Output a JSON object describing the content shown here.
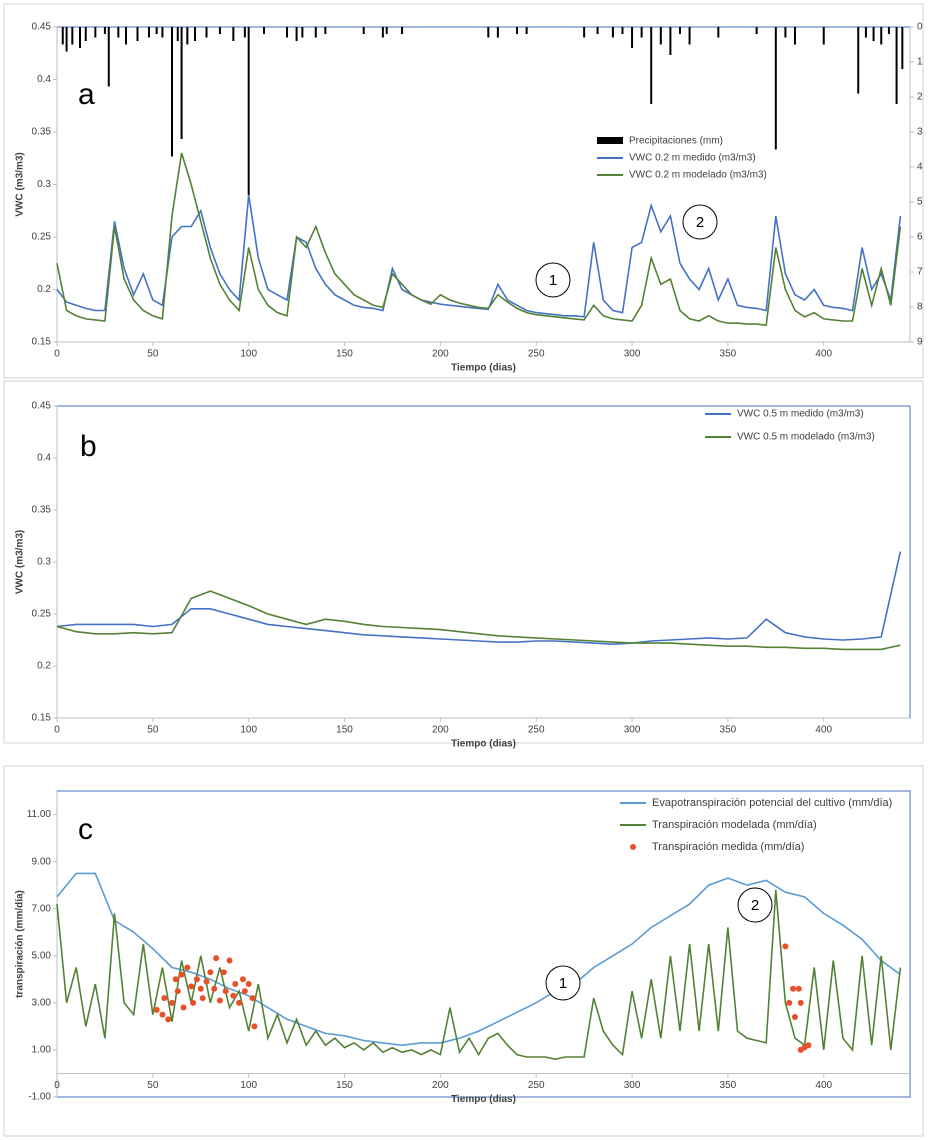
{
  "chart_data": [
    {
      "type": "line",
      "xlabel": "Tiempo (dias)",
      "ylabel": "VWC (m3/m3)",
      "annotations": [
        "a",
        "1",
        "2"
      ],
      "xlim": [
        0,
        445
      ],
      "xticks": [
        0,
        50,
        100,
        150,
        200,
        250,
        300,
        350,
        400
      ],
      "ylim": [
        0.15,
        0.45
      ],
      "yticks": [
        0.15,
        0.2,
        0.25,
        0.3,
        0.35,
        0.4,
        0.45
      ],
      "y2lim": [
        9,
        0
      ],
      "y2ticks": [
        0,
        1,
        2,
        3,
        4,
        5,
        6,
        7,
        8,
        9
      ],
      "x": [
        0,
        5,
        10,
        15,
        20,
        25,
        30,
        35,
        40,
        45,
        50,
        55,
        60,
        65,
        70,
        75,
        80,
        85,
        90,
        95,
        100,
        105,
        110,
        115,
        120,
        125,
        130,
        135,
        140,
        145,
        150,
        155,
        160,
        165,
        170,
        175,
        180,
        185,
        190,
        195,
        200,
        205,
        210,
        215,
        220,
        225,
        230,
        235,
        240,
        245,
        250,
        255,
        260,
        265,
        270,
        275,
        280,
        285,
        290,
        295,
        300,
        305,
        310,
        315,
        320,
        325,
        330,
        335,
        340,
        345,
        350,
        355,
        360,
        365,
        370,
        375,
        380,
        385,
        390,
        395,
        400,
        405,
        410,
        415,
        420,
        425,
        430,
        435,
        440
      ],
      "series": [
        {
          "name": "Precipitaciones (mm)",
          "type": "bar",
          "axis": "y2",
          "color": "#000000",
          "x": [
            3,
            5,
            8,
            12,
            15,
            20,
            25,
            27,
            32,
            36,
            42,
            48,
            52,
            55,
            60,
            63,
            65,
            68,
            72,
            78,
            85,
            92,
            98,
            100,
            108,
            120,
            125,
            128,
            135,
            140,
            160,
            170,
            172,
            180,
            225,
            230,
            240,
            245,
            275,
            282,
            290,
            295,
            300,
            305,
            310,
            315,
            320,
            325,
            330,
            345,
            365,
            375,
            380,
            385,
            400,
            418,
            422,
            426,
            430,
            434,
            438,
            441
          ],
          "values": [
            0.5,
            0.7,
            0.5,
            0.6,
            0.4,
            0.3,
            0.2,
            1.7,
            0.3,
            0.5,
            0.4,
            0.3,
            0.2,
            0.3,
            3.7,
            0.4,
            3.2,
            0.5,
            0.4,
            0.3,
            0.2,
            0.4,
            0.3,
            4.8,
            0.2,
            0.3,
            0.4,
            0.3,
            0.3,
            0.2,
            0.2,
            0.3,
            0.2,
            0.2,
            0.3,
            0.3,
            0.2,
            0.2,
            0.3,
            0.2,
            0.3,
            0.2,
            0.6,
            0.3,
            2.2,
            0.5,
            0.8,
            0.2,
            0.5,
            0.3,
            0.2,
            3.5,
            0.3,
            0.5,
            0.5,
            1.9,
            0.3,
            0.4,
            0.5,
            0.2,
            2.2,
            1.2
          ]
        },
        {
          "name": "VWC 0.2 m medido (m3/m3)",
          "type": "line",
          "color": "#4472c4",
          "values": [
            0.2,
            0.188,
            0.185,
            0.182,
            0.18,
            0.18,
            0.265,
            0.22,
            0.195,
            0.215,
            0.19,
            0.185,
            0.25,
            0.26,
            0.26,
            0.275,
            0.24,
            0.215,
            0.2,
            0.19,
            0.29,
            0.23,
            0.2,
            0.195,
            0.19,
            0.25,
            0.245,
            0.22,
            0.205,
            0.195,
            0.19,
            0.185,
            0.183,
            0.182,
            0.18,
            0.22,
            0.2,
            0.195,
            0.19,
            0.188,
            0.186,
            0.185,
            0.184,
            0.183,
            0.182,
            0.181,
            0.205,
            0.19,
            0.185,
            0.18,
            0.178,
            0.177,
            0.176,
            0.175,
            0.175,
            0.174,
            0.245,
            0.19,
            0.18,
            0.178,
            0.24,
            0.245,
            0.28,
            0.255,
            0.27,
            0.225,
            0.21,
            0.2,
            0.22,
            0.19,
            0.21,
            0.185,
            0.183,
            0.182,
            0.18,
            0.27,
            0.215,
            0.195,
            0.19,
            0.2,
            0.185,
            0.183,
            0.182,
            0.18,
            0.24,
            0.2,
            0.215,
            0.19,
            0.27
          ]
        },
        {
          "name": "VWC 0.2 m modelado (m3/m3)",
          "type": "line",
          "color": "#548235",
          "values": [
            0.225,
            0.18,
            0.175,
            0.172,
            0.171,
            0.17,
            0.26,
            0.21,
            0.19,
            0.18,
            0.175,
            0.172,
            0.27,
            0.33,
            0.3,
            0.265,
            0.23,
            0.205,
            0.19,
            0.18,
            0.24,
            0.2,
            0.185,
            0.178,
            0.175,
            0.25,
            0.24,
            0.26,
            0.235,
            0.215,
            0.205,
            0.195,
            0.19,
            0.185,
            0.183,
            0.215,
            0.205,
            0.195,
            0.19,
            0.186,
            0.195,
            0.19,
            0.187,
            0.185,
            0.183,
            0.182,
            0.195,
            0.188,
            0.182,
            0.178,
            0.176,
            0.175,
            0.174,
            0.173,
            0.172,
            0.171,
            0.185,
            0.175,
            0.172,
            0.171,
            0.17,
            0.185,
            0.23,
            0.205,
            0.21,
            0.18,
            0.172,
            0.17,
            0.175,
            0.17,
            0.168,
            0.168,
            0.167,
            0.167,
            0.166,
            0.24,
            0.2,
            0.18,
            0.174,
            0.178,
            0.172,
            0.171,
            0.17,
            0.17,
            0.22,
            0.185,
            0.22,
            0.185,
            0.26
          ]
        }
      ]
    },
    {
      "type": "line",
      "xlabel": "Tiempo (dias)",
      "ylabel": "VWC (m3/m3)",
      "annotations": [
        "b"
      ],
      "xlim": [
        0,
        445
      ],
      "xticks": [
        0,
        50,
        100,
        150,
        200,
        250,
        300,
        350,
        400
      ],
      "ylim": [
        0.15,
        0.45
      ],
      "yticks": [
        0.15,
        0.2,
        0.25,
        0.3,
        0.35,
        0.4,
        0.45
      ],
      "x": [
        0,
        10,
        20,
        30,
        40,
        50,
        60,
        70,
        80,
        90,
        100,
        110,
        120,
        130,
        140,
        150,
        160,
        170,
        180,
        190,
        200,
        210,
        220,
        230,
        240,
        250,
        260,
        270,
        280,
        290,
        300,
        310,
        320,
        330,
        340,
        350,
        360,
        370,
        380,
        390,
        400,
        410,
        420,
        430,
        440
      ],
      "series": [
        {
          "name": "VWC 0.5 m medido (m3/m3)",
          "type": "line",
          "color": "#4472c4",
          "values": [
            0.238,
            0.24,
            0.24,
            0.24,
            0.24,
            0.238,
            0.24,
            0.255,
            0.255,
            0.25,
            0.245,
            0.24,
            0.238,
            0.236,
            0.234,
            0.232,
            0.23,
            0.229,
            0.228,
            0.227,
            0.226,
            0.225,
            0.224,
            0.223,
            0.223,
            0.224,
            0.224,
            0.223,
            0.222,
            0.221,
            0.222,
            0.224,
            0.225,
            0.226,
            0.227,
            0.226,
            0.227,
            0.245,
            0.232,
            0.228,
            0.226,
            0.225,
            0.226,
            0.228,
            0.31
          ]
        },
        {
          "name": "VWC 0.5 m modelado (m3/m3)",
          "type": "line",
          "color": "#548235",
          "values": [
            0.238,
            0.233,
            0.231,
            0.231,
            0.232,
            0.231,
            0.232,
            0.265,
            0.272,
            0.265,
            0.258,
            0.25,
            0.245,
            0.24,
            0.245,
            0.243,
            0.24,
            0.238,
            0.237,
            0.236,
            0.235,
            0.233,
            0.231,
            0.229,
            0.228,
            0.227,
            0.226,
            0.225,
            0.224,
            0.223,
            0.222,
            0.222,
            0.222,
            0.221,
            0.22,
            0.219,
            0.219,
            0.218,
            0.218,
            0.217,
            0.217,
            0.216,
            0.216,
            0.216,
            0.22
          ]
        }
      ]
    },
    {
      "type": "line",
      "xlabel": "Tiempo (dias)",
      "ylabel": "transpiración (mm/día)",
      "annotations": [
        "c",
        "1",
        "2"
      ],
      "xlim": [
        0,
        445
      ],
      "xticks": [
        0,
        50,
        100,
        150,
        200,
        250,
        300,
        350,
        400
      ],
      "ylim": [
        -1,
        12
      ],
      "yticks": [
        {
          "value": -1,
          "label": "-1.00"
        },
        {
          "value": 1,
          "label": "1.00"
        },
        {
          "value": 3,
          "label": "3.00"
        },
        {
          "value": 5,
          "label": "5.00"
        },
        {
          "value": 7,
          "label": "7.00"
        },
        {
          "value": 9,
          "label": "9.00"
        },
        {
          "value": 11,
          "label": "11.00"
        }
      ],
      "x": [
        0,
        5,
        10,
        15,
        20,
        25,
        30,
        35,
        40,
        45,
        50,
        55,
        60,
        65,
        70,
        75,
        80,
        85,
        90,
        95,
        100,
        105,
        110,
        115,
        120,
        125,
        130,
        135,
        140,
        145,
        150,
        155,
        160,
        165,
        170,
        175,
        180,
        185,
        190,
        195,
        200,
        205,
        210,
        215,
        220,
        225,
        230,
        235,
        240,
        245,
        250,
        255,
        260,
        265,
        270,
        275,
        280,
        285,
        290,
        295,
        300,
        305,
        310,
        315,
        320,
        325,
        330,
        335,
        340,
        345,
        350,
        355,
        360,
        365,
        370,
        375,
        380,
        385,
        390,
        395,
        400,
        405,
        410,
        415,
        420,
        425,
        430,
        435,
        440
      ],
      "series": [
        {
          "name": "Evapotranspiración potencial del cultivo (mm/día)",
          "type": "line",
          "color": "#5b9bd5",
          "x": [
            0,
            10,
            20,
            30,
            40,
            50,
            60,
            70,
            80,
            90,
            100,
            110,
            120,
            130,
            140,
            150,
            160,
            170,
            180,
            190,
            200,
            210,
            220,
            230,
            240,
            250,
            260,
            270,
            280,
            290,
            300,
            310,
            320,
            330,
            340,
            350,
            360,
            370,
            380,
            390,
            400,
            410,
            420,
            430,
            440
          ],
          "values": [
            7.5,
            8.5,
            8.5,
            6.5,
            6,
            5.3,
            4.5,
            4.3,
            4,
            3.6,
            3.3,
            2.8,
            2.3,
            2,
            1.7,
            1.6,
            1.4,
            1.3,
            1.2,
            1.3,
            1.3,
            1.5,
            1.8,
            2.2,
            2.6,
            3,
            3.5,
            3.8,
            4.5,
            5,
            5.5,
            6.2,
            6.7,
            7.2,
            8,
            8.3,
            8,
            8.2,
            7.7,
            7.5,
            6.8,
            6.3,
            5.7,
            4.8,
            4.2
          ]
        },
        {
          "name": "Transpiración modelada (mm/día)",
          "type": "line",
          "color": "#548235",
          "values": [
            7.2,
            3,
            4.5,
            2,
            3.8,
            1.5,
            6.8,
            3,
            2.5,
            5.5,
            2.5,
            4.5,
            2.2,
            4.8,
            3,
            5,
            3,
            4.5,
            2.8,
            3.5,
            1.8,
            3.8,
            1.5,
            2.5,
            1.3,
            2.3,
            1.2,
            1.8,
            1.2,
            1.5,
            1.1,
            1.3,
            1,
            1.3,
            0.9,
            1.1,
            0.9,
            1,
            0.8,
            1,
            0.8,
            2.8,
            0.9,
            1.5,
            0.8,
            1.5,
            1.7,
            1.2,
            0.8,
            0.7,
            0.7,
            0.7,
            0.6,
            0.7,
            0.7,
            0.7,
            3.2,
            1.8,
            1.2,
            0.8,
            3.5,
            1.5,
            4,
            1.5,
            5,
            1.8,
            5.5,
            1.8,
            5.5,
            1.8,
            6.2,
            1.8,
            1.5,
            1.4,
            1.3,
            7.8,
            3,
            1.5,
            1.2,
            4.5,
            1,
            4.8,
            1.5,
            1,
            5,
            1.2,
            5,
            1,
            4.5
          ]
        },
        {
          "name": "Transpiración medida (mm/día)",
          "type": "scatter",
          "color": "#e8502a",
          "x": [
            52,
            55,
            56,
            58,
            60,
            62,
            63,
            65,
            66,
            68,
            70,
            71,
            73,
            75,
            76,
            78,
            80,
            82,
            83,
            85,
            87,
            88,
            90,
            92,
            93,
            95,
            97,
            98,
            100,
            102,
            103,
            380,
            382,
            384,
            385,
            387,
            388,
            390,
            392,
            388
          ],
          "values": [
            2.7,
            2.5,
            3.2,
            2.3,
            3,
            4,
            3.5,
            4.2,
            2.8,
            4.5,
            3.7,
            3,
            4,
            3.6,
            3.2,
            3.9,
            4.3,
            3.6,
            4.9,
            3.1,
            4.3,
            3.5,
            4.8,
            3.3,
            3.8,
            3,
            4,
            3.5,
            3.8,
            3.2,
            2,
            5.4,
            3,
            3.6,
            2.4,
            3.6,
            3,
            1.1,
            1.2,
            1
          ]
        }
      ]
    }
  ]
}
